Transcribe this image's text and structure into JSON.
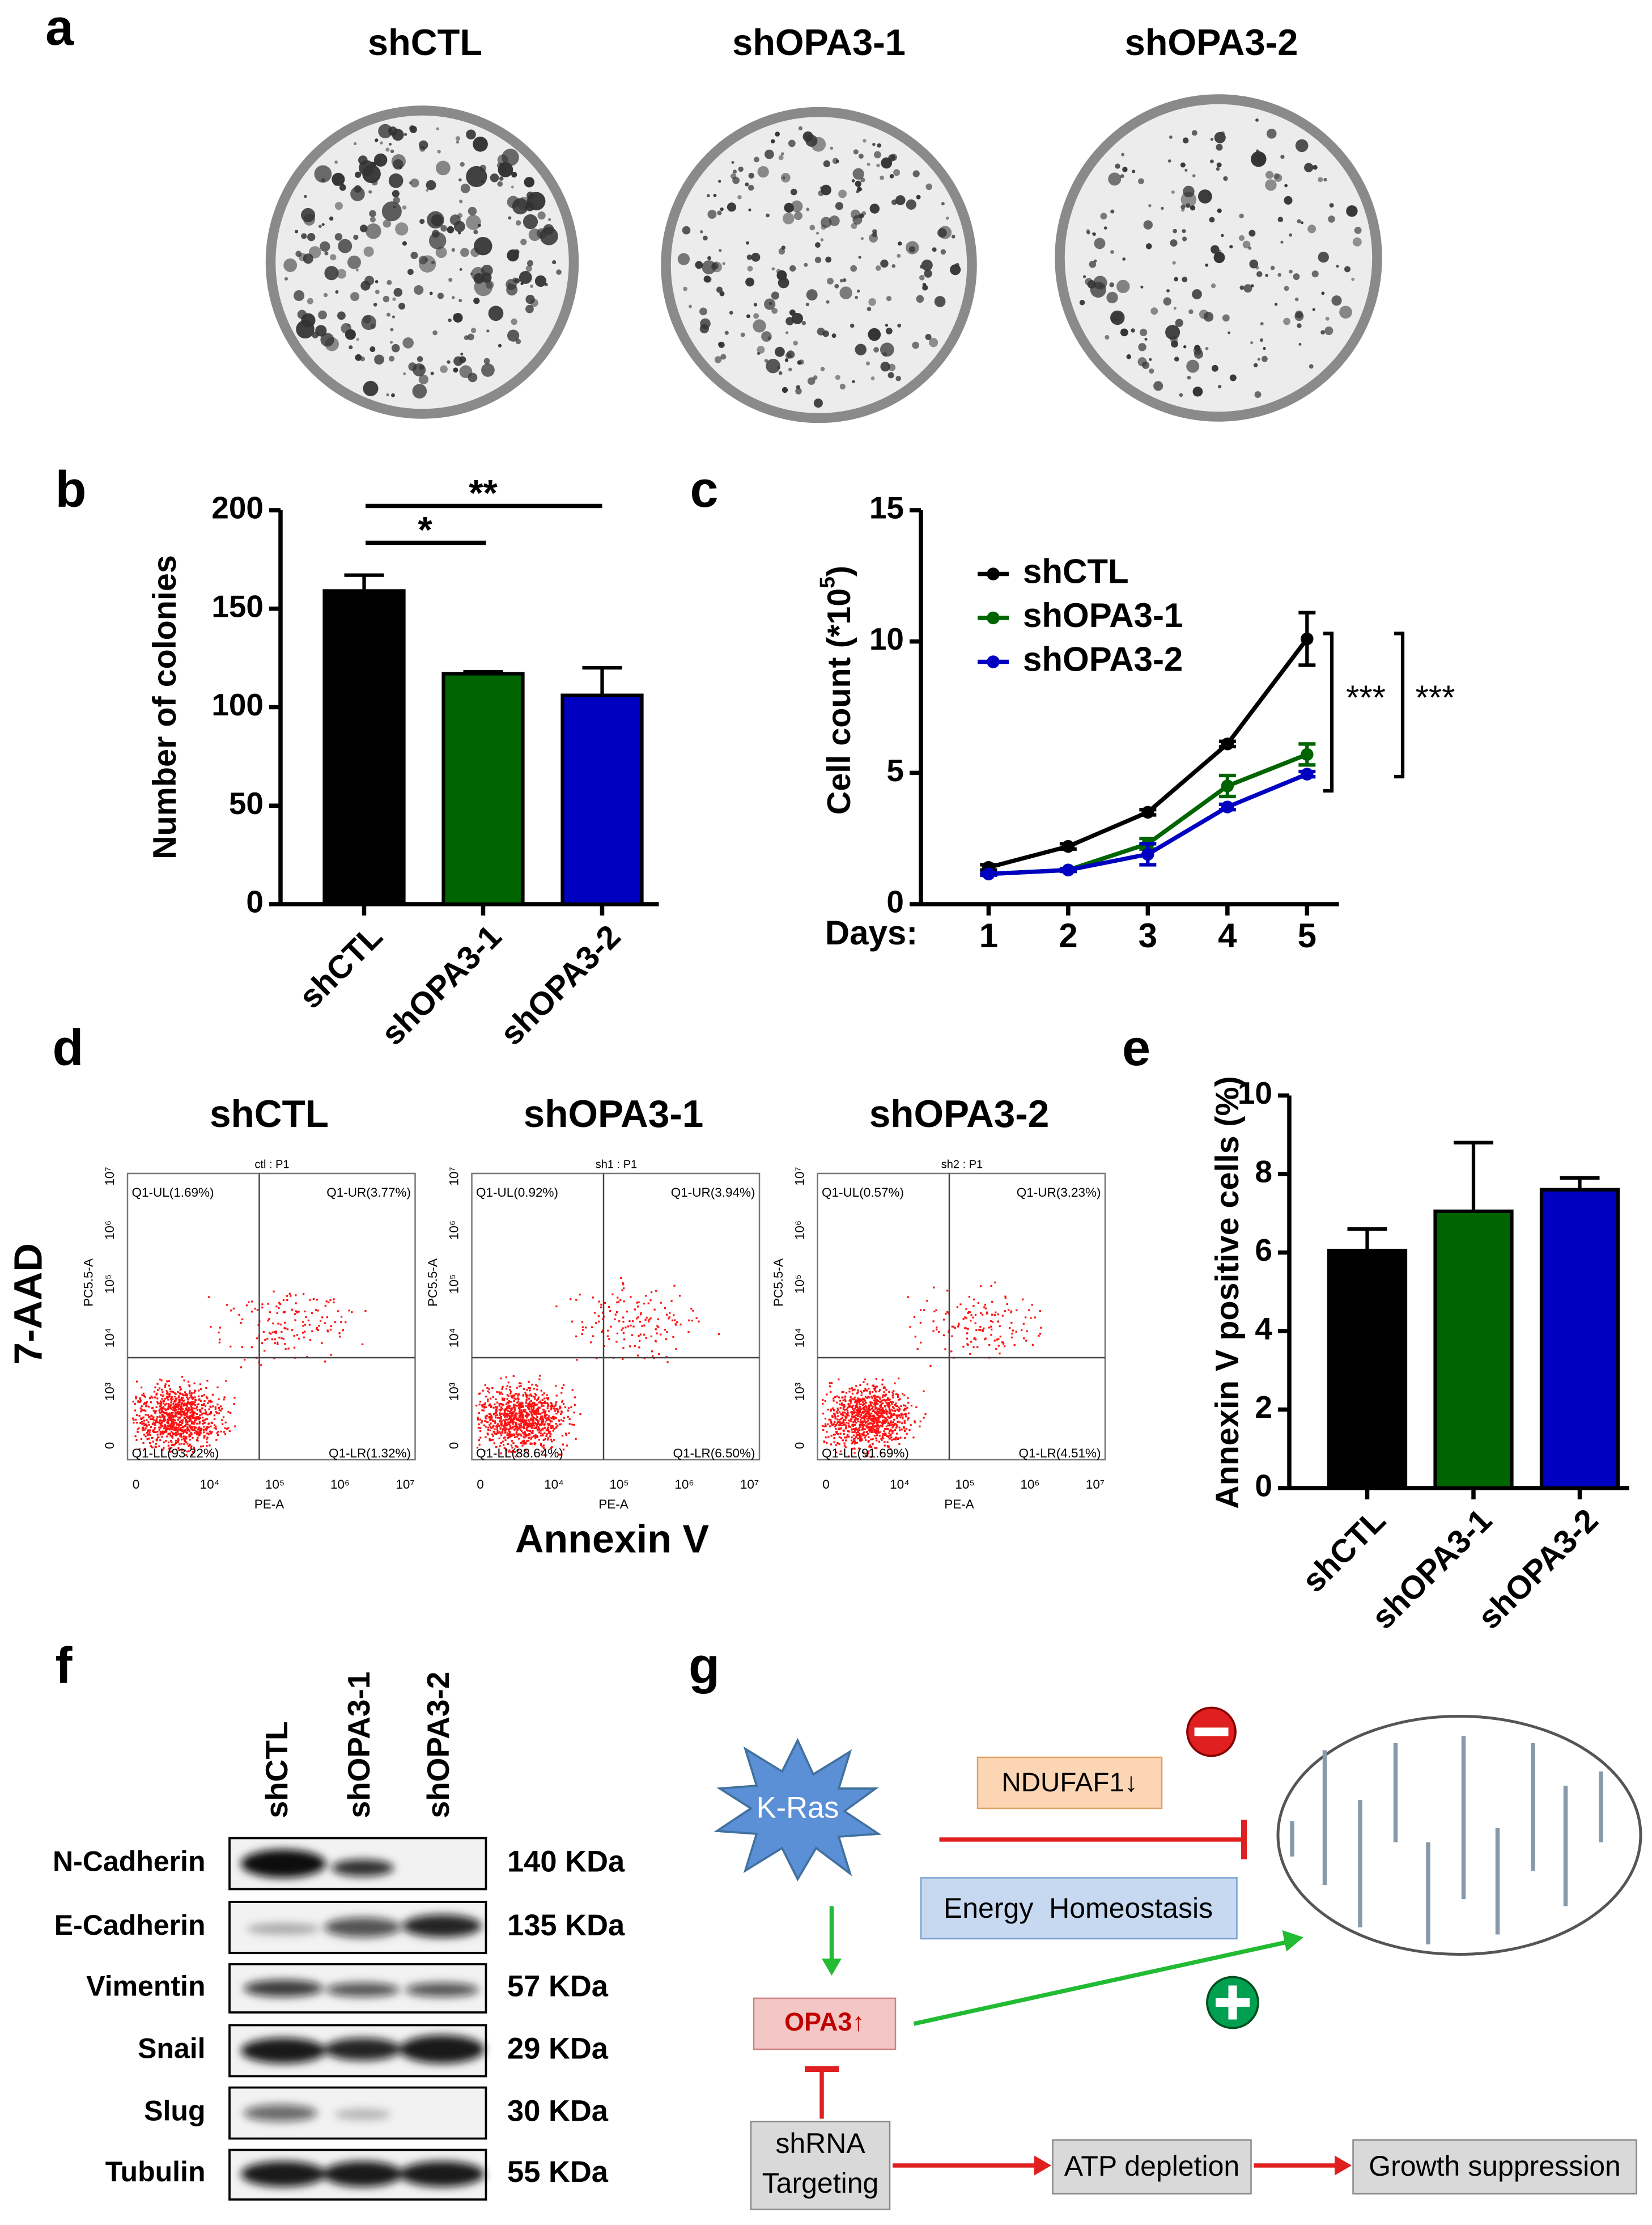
{
  "panel_labels": [
    "a",
    "b",
    "c",
    "d",
    "e",
    "f",
    "g"
  ],
  "panel_a": {
    "titles": [
      "shCTL",
      "shOPA3-1",
      "shOPA3-2"
    ]
  },
  "chart_data": [
    {
      "type": "bar",
      "ylabel": "Number of colonies",
      "categories": [
        "shCTL",
        "shOPA3-1",
        "shOPA3-2"
      ],
      "values": [
        159,
        117,
        106
      ],
      "errors": [
        8,
        1,
        14
      ],
      "colors": [
        "#000000",
        "#006400",
        "#0000c0"
      ],
      "ylim": [
        0,
        200
      ],
      "yticks": [
        0,
        50,
        100,
        150,
        200
      ],
      "annotations": [
        "*",
        "**"
      ]
    },
    {
      "type": "line",
      "ylabel": [
        "Cell count (*10",
        "5",
        ")"
      ],
      "xlabel": "Days:",
      "x": [
        1,
        2,
        3,
        4,
        5
      ],
      "xlim": [
        0.15,
        5.4
      ],
      "xticks": [
        1,
        2,
        3,
        4,
        5
      ],
      "ylim": [
        0,
        15
      ],
      "yticks": [
        0,
        5,
        10,
        15
      ],
      "series": [
        {
          "name": "shCTL",
          "color": "#000000",
          "values": [
            1.4,
            2.2,
            3.5,
            6.1,
            10.1
          ],
          "errors": [
            0.1,
            0.1,
            0.1,
            0.1,
            1.0
          ]
        },
        {
          "name": "shOPA3-1",
          "color": "#006400",
          "values": [
            1.15,
            1.3,
            2.3,
            4.5,
            5.7
          ],
          "errors": [
            0.05,
            0.05,
            0.2,
            0.4,
            0.4
          ]
        },
        {
          "name": "shOPA3-2",
          "color": "#0000c0",
          "values": [
            1.15,
            1.3,
            1.9,
            3.7,
            4.95
          ],
          "errors": [
            0.05,
            0.05,
            0.4,
            0.1,
            0.1
          ]
        }
      ],
      "annotations": [
        "***",
        "***"
      ]
    },
    {
      "type": "bar",
      "ylabel": "Annexin V positive cells (%)",
      "categories": [
        "shCTL",
        "shOPA3-1",
        "shOPA3-2"
      ],
      "values": [
        6.05,
        7.05,
        7.6
      ],
      "errors": [
        0.55,
        1.75,
        0.3
      ],
      "colors": [
        "#000000",
        "#006400",
        "#0000c0"
      ],
      "ylim": [
        0,
        10
      ],
      "yticks": [
        0,
        2,
        4,
        6,
        8,
        10
      ]
    }
  ],
  "panel_d": {
    "xlabel": "Annexin V",
    "ylabel": "7-AAD",
    "axis_x": "PE-A",
    "axis_y": "PC5.5-A",
    "x_ticks": [
      "0",
      "10⁴",
      "10⁵",
      "10⁶",
      "10⁷"
    ],
    "y_ticks": [
      "0",
      "10³",
      "10⁴",
      "10⁵",
      "10⁶",
      "10⁷"
    ],
    "plots": [
      {
        "title": "shCTL",
        "header": "ctl : P1",
        "quadrants": [
          "Q1-UL(1.69%)",
          "Q1-UR(3.77%)",
          "Q1-LL(93.22%)",
          "Q1-LR(1.32%)"
        ]
      },
      {
        "title": "shOPA3-1",
        "header": "sh1 : P1",
        "quadrants": [
          "Q1-UL(0.92%)",
          "Q1-UR(3.94%)",
          "Q1-LL(88.64%)",
          "Q1-LR(6.50%)"
        ]
      },
      {
        "title": "shOPA3-2",
        "header": "sh2 : P1",
        "quadrants": [
          "Q1-UL(0.57%)",
          "Q1-UR(3.23%)",
          "Q1-LL(91.69%)",
          "Q1-LR(4.51%)"
        ]
      }
    ]
  },
  "panel_f": {
    "lanes": [
      "shCTL",
      "shOPA3-1",
      "shOPA3-2"
    ],
    "rows": [
      {
        "protein": "N-Cadherin",
        "size": "140 KDa"
      },
      {
        "protein": "E-Cadherin",
        "size": "135 KDa"
      },
      {
        "protein": "Vimentin",
        "size": "57 KDa"
      },
      {
        "protein": "Snail",
        "size": "29 KDa"
      },
      {
        "protein": "Slug",
        "size": "30 KDa"
      },
      {
        "protein": "Tubulin",
        "size": "55 KDa"
      }
    ]
  },
  "panel_g": {
    "nodes": [
      {
        "label": "K-Ras"
      },
      {
        "label": "NDUFAF1↓"
      },
      {
        "label": "Energy  Homeostasis"
      },
      {
        "label": "OPA3↑"
      },
      {
        "label": [
          "shRNA",
          "Targeting"
        ]
      },
      {
        "label": "ATP depletion"
      },
      {
        "label": "Growth suppression"
      }
    ]
  }
}
